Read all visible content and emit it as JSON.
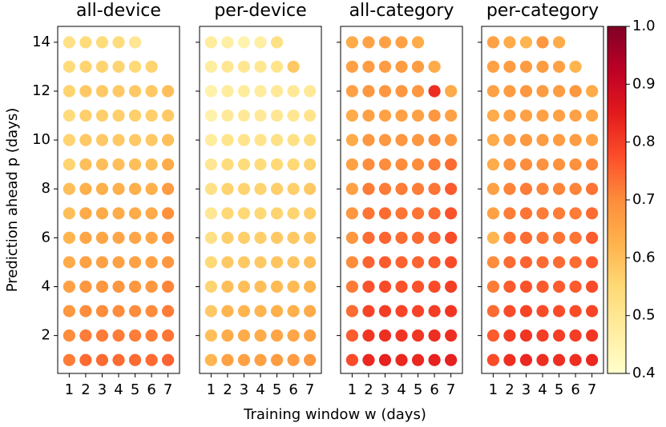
{
  "figure": {
    "xlabel": "Training window w (days)",
    "ylabel": "Prediction ahead p (days)",
    "colorbar": {
      "colormap": "YlOrRd",
      "lim": [
        0.4,
        1.0
      ],
      "ticks": [
        0.4,
        0.5,
        0.6,
        0.7,
        0.8,
        0.9,
        {
          "value": 1,
          "label": "1.0"
        }
      ]
    }
  },
  "chart_data": [
    {
      "type": "scatter",
      "title": "all-device",
      "x": [
        1,
        2,
        3,
        4,
        5,
        6,
        7,
        1,
        2,
        3,
        4,
        5,
        6,
        7,
        1,
        2,
        3,
        4,
        5,
        6,
        7,
        1,
        2,
        3,
        4,
        5,
        6,
        7,
        1,
        2,
        3,
        4,
        5,
        6,
        7,
        1,
        2,
        3,
        4,
        5,
        6,
        7,
        1,
        2,
        3,
        4,
        5,
        6,
        7,
        1,
        2,
        3,
        4,
        5,
        6,
        7,
        1,
        2,
        3,
        4,
        5,
        6,
        7,
        1,
        2,
        3,
        4,
        5,
        6,
        7,
        1,
        2,
        3,
        4,
        5,
        6,
        7,
        1,
        2,
        3,
        4,
        5,
        6,
        7,
        1,
        2,
        3,
        4,
        5,
        6,
        1,
        2,
        3,
        4,
        5
      ],
      "y": [
        1,
        1,
        1,
        1,
        1,
        1,
        1,
        2,
        2,
        2,
        2,
        2,
        2,
        2,
        3,
        3,
        3,
        3,
        3,
        3,
        3,
        4,
        4,
        4,
        4,
        4,
        4,
        4,
        5,
        5,
        5,
        5,
        5,
        5,
        5,
        6,
        6,
        6,
        6,
        6,
        6,
        6,
        7,
        7,
        7,
        7,
        7,
        7,
        7,
        8,
        8,
        8,
        8,
        8,
        8,
        8,
        9,
        9,
        9,
        9,
        9,
        9,
        9,
        10,
        10,
        10,
        10,
        10,
        10,
        10,
        11,
        11,
        11,
        11,
        11,
        11,
        11,
        12,
        12,
        12,
        12,
        12,
        12,
        12,
        13,
        13,
        13,
        13,
        13,
        13,
        14,
        14,
        14,
        14,
        14
      ],
      "values": [
        0.72,
        0.74,
        0.74,
        0.74,
        0.74,
        0.74,
        0.75,
        0.7,
        0.72,
        0.72,
        0.72,
        0.72,
        0.72,
        0.73,
        0.68,
        0.7,
        0.7,
        0.7,
        0.7,
        0.7,
        0.72,
        0.66,
        0.68,
        0.68,
        0.68,
        0.68,
        0.68,
        0.71,
        0.64,
        0.66,
        0.66,
        0.66,
        0.66,
        0.66,
        0.68,
        0.62,
        0.65,
        0.65,
        0.65,
        0.65,
        0.65,
        0.69,
        0.6,
        0.64,
        0.64,
        0.64,
        0.64,
        0.64,
        0.69,
        0.6,
        0.63,
        0.63,
        0.63,
        0.63,
        0.63,
        0.67,
        0.56,
        0.6,
        0.6,
        0.6,
        0.6,
        0.6,
        0.64,
        0.56,
        0.58,
        0.58,
        0.58,
        0.58,
        0.58,
        0.6,
        0.54,
        0.57,
        0.57,
        0.57,
        0.57,
        0.57,
        0.58,
        0.56,
        0.58,
        0.58,
        0.58,
        0.58,
        0.58,
        0.6,
        0.54,
        0.56,
        0.56,
        0.56,
        0.55,
        0.56,
        0.52,
        0.54,
        0.54,
        0.54,
        0.5
      ],
      "xlim": [
        0.3,
        7.7
      ],
      "ylim": [
        0.45,
        14.65
      ],
      "xticks": [
        1,
        2,
        3,
        4,
        5,
        6,
        7
      ],
      "yticks": [
        2,
        4,
        6,
        8,
        10,
        12,
        14
      ]
    },
    {
      "type": "scatter",
      "title": "per-device",
      "x": [
        1,
        2,
        3,
        4,
        5,
        6,
        7,
        1,
        2,
        3,
        4,
        5,
        6,
        7,
        1,
        2,
        3,
        4,
        5,
        6,
        7,
        1,
        2,
        3,
        4,
        5,
        6,
        7,
        1,
        2,
        3,
        4,
        5,
        6,
        7,
        1,
        2,
        3,
        4,
        5,
        6,
        7,
        1,
        2,
        3,
        4,
        5,
        6,
        7,
        1,
        2,
        3,
        4,
        5,
        6,
        7,
        1,
        2,
        3,
        4,
        5,
        6,
        7,
        1,
        2,
        3,
        4,
        5,
        6,
        7,
        1,
        2,
        3,
        4,
        5,
        6,
        7,
        1,
        2,
        3,
        4,
        5,
        6,
        7,
        1,
        2,
        3,
        4,
        5,
        6,
        1,
        2,
        3,
        4,
        5
      ],
      "y": [
        1,
        1,
        1,
        1,
        1,
        1,
        1,
        2,
        2,
        2,
        2,
        2,
        2,
        2,
        3,
        3,
        3,
        3,
        3,
        3,
        3,
        4,
        4,
        4,
        4,
        4,
        4,
        4,
        5,
        5,
        5,
        5,
        5,
        5,
        5,
        6,
        6,
        6,
        6,
        6,
        6,
        6,
        7,
        7,
        7,
        7,
        7,
        7,
        7,
        8,
        8,
        8,
        8,
        8,
        8,
        8,
        9,
        9,
        9,
        9,
        9,
        9,
        9,
        10,
        10,
        10,
        10,
        10,
        10,
        10,
        11,
        11,
        11,
        11,
        11,
        11,
        11,
        12,
        12,
        12,
        12,
        12,
        12,
        12,
        13,
        13,
        13,
        13,
        13,
        13,
        14,
        14,
        14,
        14,
        14
      ],
      "values": [
        0.62,
        0.66,
        0.66,
        0.66,
        0.67,
        0.67,
        0.68,
        0.6,
        0.64,
        0.64,
        0.64,
        0.65,
        0.65,
        0.66,
        0.58,
        0.62,
        0.62,
        0.62,
        0.63,
        0.63,
        0.64,
        0.56,
        0.6,
        0.6,
        0.6,
        0.61,
        0.61,
        0.62,
        0.55,
        0.58,
        0.58,
        0.58,
        0.59,
        0.59,
        0.6,
        0.52,
        0.57,
        0.57,
        0.57,
        0.58,
        0.58,
        0.59,
        0.5,
        0.55,
        0.55,
        0.55,
        0.56,
        0.56,
        0.57,
        0.52,
        0.56,
        0.56,
        0.56,
        0.57,
        0.57,
        0.58,
        0.5,
        0.54,
        0.54,
        0.54,
        0.55,
        0.55,
        0.56,
        0.48,
        0.51,
        0.51,
        0.51,
        0.52,
        0.52,
        0.53,
        0.46,
        0.49,
        0.49,
        0.49,
        0.5,
        0.5,
        0.51,
        0.46,
        0.48,
        0.48,
        0.48,
        0.49,
        0.49,
        0.49,
        0.48,
        0.5,
        0.5,
        0.5,
        0.51,
        0.58,
        0.48,
        0.47,
        0.45,
        0.47,
        0.52
      ],
      "xlim": [
        0.3,
        7.7
      ],
      "ylim": [
        0.45,
        14.65
      ],
      "xticks": [
        1,
        2,
        3,
        4,
        5,
        6,
        7
      ]
    },
    {
      "type": "scatter",
      "title": "all-category",
      "x": [
        1,
        2,
        3,
        4,
        5,
        6,
        7,
        1,
        2,
        3,
        4,
        5,
        6,
        7,
        1,
        2,
        3,
        4,
        5,
        6,
        7,
        1,
        2,
        3,
        4,
        5,
        6,
        7,
        1,
        2,
        3,
        4,
        5,
        6,
        7,
        1,
        2,
        3,
        4,
        5,
        6,
        7,
        1,
        2,
        3,
        4,
        5,
        6,
        7,
        1,
        2,
        3,
        4,
        5,
        6,
        7,
        1,
        2,
        3,
        4,
        5,
        6,
        7,
        1,
        2,
        3,
        4,
        5,
        6,
        7,
        1,
        2,
        3,
        4,
        5,
        6,
        7,
        1,
        2,
        3,
        4,
        5,
        6,
        7,
        1,
        2,
        3,
        4,
        5,
        6,
        1,
        2,
        3,
        4,
        5
      ],
      "y": [
        1,
        1,
        1,
        1,
        1,
        1,
        1,
        2,
        2,
        2,
        2,
        2,
        2,
        2,
        3,
        3,
        3,
        3,
        3,
        3,
        3,
        4,
        4,
        4,
        4,
        4,
        4,
        4,
        5,
        5,
        5,
        5,
        5,
        5,
        5,
        6,
        6,
        6,
        6,
        6,
        6,
        6,
        7,
        7,
        7,
        7,
        7,
        7,
        7,
        8,
        8,
        8,
        8,
        8,
        8,
        8,
        9,
        9,
        9,
        9,
        9,
        9,
        9,
        10,
        10,
        10,
        10,
        10,
        10,
        10,
        11,
        11,
        11,
        11,
        11,
        11,
        11,
        12,
        12,
        12,
        12,
        12,
        12,
        12,
        13,
        13,
        13,
        13,
        13,
        13,
        14,
        14,
        14,
        14,
        14
      ],
      "values": [
        0.78,
        0.83,
        0.84,
        0.83,
        0.83,
        0.84,
        0.84,
        0.76,
        0.81,
        0.82,
        0.81,
        0.81,
        0.82,
        0.82,
        0.74,
        0.79,
        0.8,
        0.79,
        0.79,
        0.8,
        0.81,
        0.72,
        0.77,
        0.78,
        0.77,
        0.77,
        0.78,
        0.8,
        0.7,
        0.75,
        0.76,
        0.75,
        0.75,
        0.76,
        0.78,
        0.68,
        0.74,
        0.75,
        0.74,
        0.74,
        0.75,
        0.78,
        0.68,
        0.73,
        0.74,
        0.73,
        0.73,
        0.74,
        0.77,
        0.66,
        0.72,
        0.72,
        0.72,
        0.72,
        0.73,
        0.76,
        0.66,
        0.7,
        0.7,
        0.7,
        0.7,
        0.72,
        0.74,
        0.64,
        0.68,
        0.68,
        0.68,
        0.68,
        0.7,
        0.68,
        0.64,
        0.66,
        0.66,
        0.66,
        0.66,
        0.68,
        0.66,
        0.66,
        0.68,
        0.68,
        0.68,
        0.68,
        0.82,
        0.64,
        0.66,
        0.67,
        0.67,
        0.67,
        0.67,
        0.64,
        0.64,
        0.66,
        0.66,
        0.66,
        0.64
      ],
      "xlim": [
        0.3,
        7.7
      ],
      "ylim": [
        0.45,
        14.65
      ],
      "xticks": [
        1,
        2,
        3,
        4,
        5,
        6,
        7
      ]
    },
    {
      "type": "scatter",
      "title": "per-category",
      "x": [
        1,
        2,
        3,
        4,
        5,
        6,
        7,
        1,
        2,
        3,
        4,
        5,
        6,
        7,
        1,
        2,
        3,
        4,
        5,
        6,
        7,
        1,
        2,
        3,
        4,
        5,
        6,
        7,
        1,
        2,
        3,
        4,
        5,
        6,
        7,
        1,
        2,
        3,
        4,
        5,
        6,
        7,
        1,
        2,
        3,
        4,
        5,
        6,
        7,
        1,
        2,
        3,
        4,
        5,
        6,
        7,
        1,
        2,
        3,
        4,
        5,
        6,
        7,
        1,
        2,
        3,
        4,
        5,
        6,
        7,
        1,
        2,
        3,
        4,
        5,
        6,
        7,
        1,
        2,
        3,
        4,
        5,
        6,
        7,
        1,
        2,
        3,
        4,
        5,
        6,
        1,
        2,
        3,
        4,
        5
      ],
      "y": [
        1,
        1,
        1,
        1,
        1,
        1,
        1,
        2,
        2,
        2,
        2,
        2,
        2,
        2,
        3,
        3,
        3,
        3,
        3,
        3,
        3,
        4,
        4,
        4,
        4,
        4,
        4,
        4,
        5,
        5,
        5,
        5,
        5,
        5,
        5,
        6,
        6,
        6,
        6,
        6,
        6,
        6,
        7,
        7,
        7,
        7,
        7,
        7,
        7,
        8,
        8,
        8,
        8,
        8,
        8,
        8,
        9,
        9,
        9,
        9,
        9,
        9,
        9,
        10,
        10,
        10,
        10,
        10,
        10,
        10,
        11,
        11,
        11,
        11,
        11,
        11,
        11,
        12,
        12,
        12,
        12,
        12,
        12,
        12,
        13,
        13,
        13,
        13,
        13,
        13,
        14,
        14,
        14,
        14,
        14
      ],
      "values": [
        0.78,
        0.82,
        0.83,
        0.82,
        0.82,
        0.82,
        0.83,
        0.76,
        0.8,
        0.81,
        0.8,
        0.8,
        0.8,
        0.81,
        0.74,
        0.78,
        0.79,
        0.78,
        0.78,
        0.78,
        0.79,
        0.72,
        0.76,
        0.77,
        0.76,
        0.76,
        0.76,
        0.78,
        0.7,
        0.74,
        0.75,
        0.74,
        0.74,
        0.74,
        0.76,
        0.62,
        0.73,
        0.74,
        0.73,
        0.73,
        0.73,
        0.76,
        0.66,
        0.72,
        0.73,
        0.72,
        0.72,
        0.72,
        0.74,
        0.66,
        0.71,
        0.72,
        0.71,
        0.71,
        0.71,
        0.73,
        0.64,
        0.69,
        0.7,
        0.69,
        0.69,
        0.69,
        0.71,
        0.64,
        0.67,
        0.68,
        0.67,
        0.67,
        0.67,
        0.66,
        0.64,
        0.66,
        0.66,
        0.66,
        0.66,
        0.66,
        0.65,
        0.66,
        0.67,
        0.68,
        0.67,
        0.67,
        0.68,
        0.64,
        0.66,
        0.67,
        0.67,
        0.67,
        0.66,
        0.62,
        0.66,
        0.64,
        0.62,
        0.68,
        0.64
      ],
      "xlim": [
        0.3,
        7.7
      ],
      "ylim": [
        0.45,
        14.65
      ],
      "xticks": [
        1,
        2,
        3,
        4,
        5,
        6,
        7
      ]
    }
  ]
}
